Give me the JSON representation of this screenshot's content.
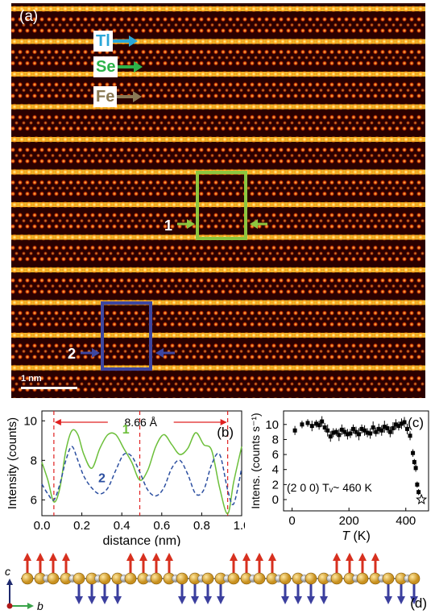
{
  "panel_a": {
    "label": "(a)",
    "legend": [
      {
        "name": "Tl",
        "color": "#2aa7d8"
      },
      {
        "name": "Se",
        "color": "#2db34a"
      },
      {
        "name": "Fe",
        "color": "#8a7a55"
      }
    ],
    "roi": [
      {
        "name": "1",
        "color": "#8cc63f"
      },
      {
        "name": "2",
        "color": "#3d46a0"
      }
    ],
    "scalebar": "1 nm"
  },
  "panel_d": {
    "label": "(d)",
    "axes": {
      "vertical": "c",
      "horizontal": "b"
    },
    "spin_up_color": "#d7301f",
    "spin_down_color": "#3b3f9e",
    "atom_color": "#c8901e"
  },
  "chart_data": [
    {
      "type": "line",
      "panel": "(b)",
      "xlabel": "distance (nm)",
      "ylabel": "Intensity (counts)",
      "xlim": [
        0,
        1.0
      ],
      "ylim": [
        5.2,
        10.5
      ],
      "xticks": [
        "0.0",
        "0.2",
        "0.4",
        "0.6",
        "0.8",
        "1.0"
      ],
      "yticks": [
        "6",
        "8",
        "10"
      ],
      "annotation": "8.66 Å",
      "dashed_x": [
        0.06,
        0.49,
        0.93
      ],
      "series": [
        {
          "name": "1",
          "color": "#6cbf3a",
          "dash": false,
          "x": [
            0.0,
            0.03,
            0.06,
            0.09,
            0.12,
            0.15,
            0.18,
            0.21,
            0.25,
            0.29,
            0.33,
            0.37,
            0.41,
            0.45,
            0.49,
            0.53,
            0.57,
            0.61,
            0.65,
            0.69,
            0.73,
            0.77,
            0.81,
            0.85,
            0.89,
            0.93,
            0.96,
            1.0
          ],
          "y": [
            7.9,
            7.0,
            5.9,
            6.6,
            8.5,
            9.5,
            9.3,
            8.3,
            7.6,
            8.6,
            9.3,
            9.3,
            8.6,
            7.9,
            7.0,
            7.5,
            8.7,
            9.3,
            8.8,
            8.3,
            8.6,
            9.4,
            8.8,
            8.5,
            6.6,
            5.3,
            6.9,
            8.7
          ]
        },
        {
          "name": "2",
          "color": "#2c4fa0",
          "dash": true,
          "x": [
            0.0,
            0.03,
            0.06,
            0.09,
            0.12,
            0.15,
            0.18,
            0.21,
            0.25,
            0.29,
            0.33,
            0.37,
            0.41,
            0.45,
            0.49,
            0.53,
            0.57,
            0.61,
            0.65,
            0.69,
            0.73,
            0.77,
            0.81,
            0.85,
            0.89,
            0.93,
            0.96,
            1.0
          ],
          "y": [
            6.8,
            6.3,
            6.0,
            6.8,
            8.0,
            8.7,
            8.0,
            7.2,
            6.6,
            6.3,
            6.6,
            7.5,
            8.3,
            8.2,
            7.4,
            6.5,
            6.2,
            6.6,
            7.6,
            8.0,
            7.3,
            6.3,
            6.5,
            7.8,
            8.3,
            6.5,
            5.8,
            7.6
          ]
        }
      ]
    },
    {
      "type": "scatter",
      "panel": "(c)",
      "xlabel": "T (K)",
      "ylabel": "Intens. (counts s⁻¹)",
      "xlim": [
        -30,
        480
      ],
      "ylim": [
        -1.5,
        11.8
      ],
      "xticks": [
        "0",
        "200",
        "400"
      ],
      "yticks": [
        "0",
        "2",
        "4",
        "6",
        "8",
        "10"
      ],
      "annotation": "(2 0 0) Tᵥ~ 460 K",
      "series": [
        {
          "name": "",
          "color": "#000000",
          "x": [
            10,
            35,
            55,
            70,
            85,
            95,
            105,
            115,
            125,
            135,
            145,
            155,
            165,
            175,
            185,
            195,
            205,
            215,
            225,
            235,
            245,
            255,
            265,
            275,
            285,
            295,
            305,
            315,
            325,
            335,
            345,
            355,
            365,
            375,
            385,
            395,
            405,
            415,
            425,
            430,
            435,
            440,
            445
          ],
          "y": [
            9.2,
            10.0,
            10.2,
            9.8,
            10.1,
            9.9,
            10.4,
            9.6,
            9.2,
            8.4,
            8.9,
            9.0,
            8.6,
            9.3,
            9.0,
            8.7,
            8.8,
            9.4,
            9.0,
            8.7,
            9.4,
            9.2,
            8.9,
            8.8,
            9.6,
            9.0,
            9.4,
            9.2,
            9.7,
            9.5,
            9.0,
            9.5,
            10.0,
            9.8,
            10.1,
            10.3,
            9.4,
            8.5,
            6.2,
            5.0,
            4.2,
            2.0,
            1.0
          ],
          "err": [
            0.6,
            0.5,
            0.5,
            0.7,
            0.5,
            0.6,
            0.7,
            0.6,
            0.8,
            0.7,
            0.6,
            0.5,
            0.8,
            0.7,
            0.6,
            0.7,
            0.6,
            0.6,
            0.7,
            0.8,
            0.6,
            0.7,
            0.6,
            0.7,
            0.8,
            0.6,
            0.7,
            0.7,
            0.8,
            0.6,
            0.7,
            0.8,
            0.7,
            0.6,
            0.7,
            0.7,
            0.7,
            0.6,
            0.5,
            0.4,
            0.5,
            0.4,
            0.4
          ]
        },
        {
          "name": "star",
          "x": [
            455
          ],
          "y": [
            0
          ]
        }
      ]
    }
  ]
}
